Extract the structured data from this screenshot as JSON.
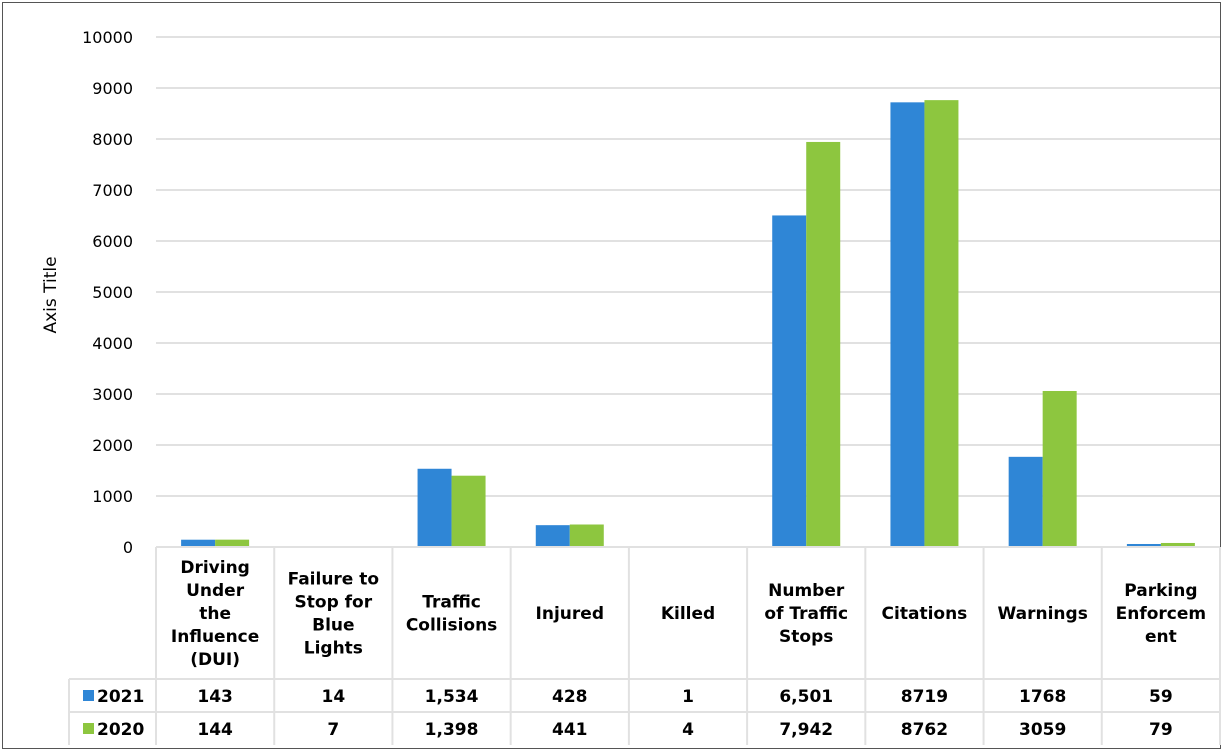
{
  "chart_data": {
    "type": "bar",
    "title": "",
    "xlabel": "",
    "ylabel": "Axis Title",
    "ylim": [
      0,
      10000
    ],
    "yticks": [
      0,
      1000,
      2000,
      3000,
      4000,
      5000,
      6000,
      7000,
      8000,
      9000,
      10000
    ],
    "grid": true,
    "legend": "data-table",
    "categories": [
      "Driving Under the Influence (DUI)",
      "Failure to Stop for Blue Lights",
      "Traffic Collisions",
      "Injured",
      "Killed",
      "Number of Traffic Stops",
      "Citations",
      "Warnings",
      "Parking Enforcement"
    ],
    "category_lines": [
      [
        "Driving",
        "Under",
        "the",
        "Influence",
        "(DUI)"
      ],
      [
        "Failure to",
        "Stop for",
        "Blue",
        "Lights"
      ],
      [
        "Traffic",
        "Collisions"
      ],
      [
        "Injured"
      ],
      [
        "Killed"
      ],
      [
        "Number",
        "of Traffic",
        "Stops"
      ],
      [
        "Citations"
      ],
      [
        "Warnings"
      ],
      [
        "Parking",
        "Enforcem",
        "ent"
      ]
    ],
    "series": [
      {
        "name": "2021",
        "color": "#2f86d6",
        "values": [
          143,
          14,
          1534,
          428,
          1,
          6501,
          8719,
          1768,
          59
        ],
        "labels": [
          "143",
          "14",
          "1,534",
          "428",
          "1",
          "6,501",
          "8719",
          "1768",
          "59"
        ]
      },
      {
        "name": "2020",
        "color": "#8dc63f",
        "values": [
          144,
          7,
          1398,
          441,
          4,
          7942,
          8762,
          3059,
          79
        ],
        "labels": [
          "144",
          "7",
          "1,398",
          "441",
          "4",
          "7,942",
          "8762",
          "3059",
          "79"
        ]
      }
    ]
  }
}
